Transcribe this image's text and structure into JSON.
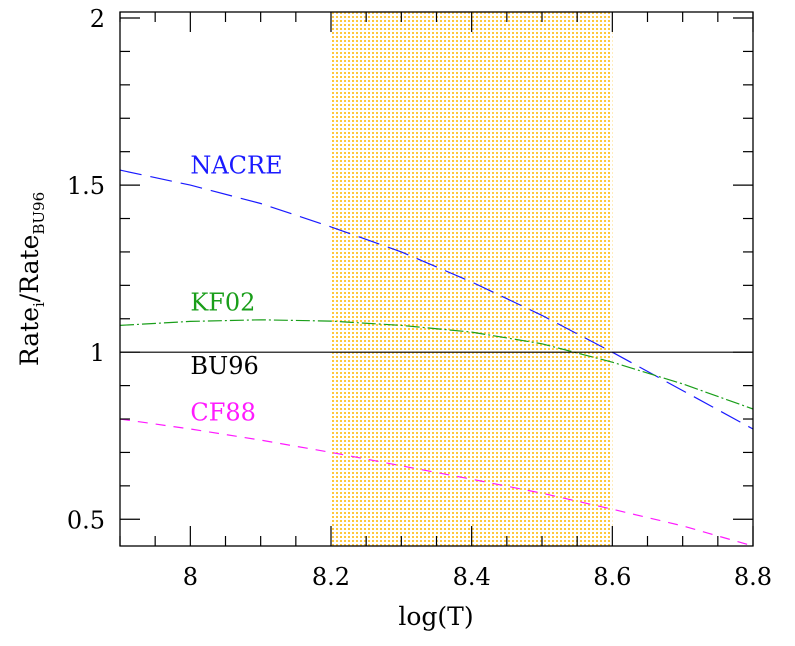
{
  "chart_data": {
    "type": "line",
    "xlabel": "log(T)",
    "ylabel": {
      "main": "Rate",
      "sub_i": "i",
      "slash": "/Rate",
      "sub_ref": "BU96"
    },
    "xlim": [
      7.9,
      8.8
    ],
    "ylim": [
      0.42,
      2.018
    ],
    "xticks": [
      8,
      8.2,
      8.4,
      8.6,
      8.8
    ],
    "xtick_labels": [
      "8",
      "8.2",
      "8.4",
      "8.6",
      "8.8"
    ],
    "yticks": [
      0.5,
      1,
      1.5,
      2
    ],
    "ytick_labels": [
      "0.5",
      "1",
      "1.5",
      "2"
    ],
    "grid": false,
    "shaded_region": {
      "x": [
        8.2,
        8.6
      ],
      "color": "#ffc83c",
      "pattern": "dotted"
    },
    "series": [
      {
        "name": "NACRE",
        "color": "#1a1aff",
        "dash": "long-dash",
        "x": [
          7.9,
          8.0,
          8.1,
          8.2,
          8.3,
          8.4,
          8.5,
          8.6,
          8.7,
          8.8
        ],
        "y": [
          1.545,
          1.5,
          1.445,
          1.375,
          1.3,
          1.21,
          1.11,
          1.0,
          0.885,
          0.77
        ]
      },
      {
        "name": "KF02",
        "color": "#1a9e1a",
        "dash": "dash-dot",
        "x": [
          7.9,
          8.0,
          8.1,
          8.2,
          8.3,
          8.4,
          8.5,
          8.6,
          8.7,
          8.8
        ],
        "y": [
          1.08,
          1.092,
          1.097,
          1.093,
          1.08,
          1.06,
          1.025,
          0.97,
          0.905,
          0.83
        ]
      },
      {
        "name": "BU96",
        "color": "#000000",
        "dash": "solid",
        "x": [
          7.9,
          8.8
        ],
        "y": [
          1.0,
          1.0
        ]
      },
      {
        "name": "CF88",
        "color": "#ff1aff",
        "dash": "short-dash",
        "x": [
          7.9,
          8.0,
          8.1,
          8.2,
          8.3,
          8.4,
          8.5,
          8.6,
          8.7,
          8.8
        ],
        "y": [
          0.8,
          0.77,
          0.737,
          0.7,
          0.66,
          0.62,
          0.578,
          0.53,
          0.48,
          0.42
        ]
      }
    ],
    "labels": [
      {
        "text": "NACRE",
        "color": "#1a1aff",
        "x": 8.0,
        "y": 1.535
      },
      {
        "text": "KF02",
        "color": "#1a9e1a",
        "x": 8.0,
        "y": 1.125
      },
      {
        "text": "BU96",
        "color": "#000000",
        "x": 8.0,
        "y": 0.935
      },
      {
        "text": "CF88",
        "color": "#ff1aff",
        "x": 8.0,
        "y": 0.795
      }
    ]
  }
}
